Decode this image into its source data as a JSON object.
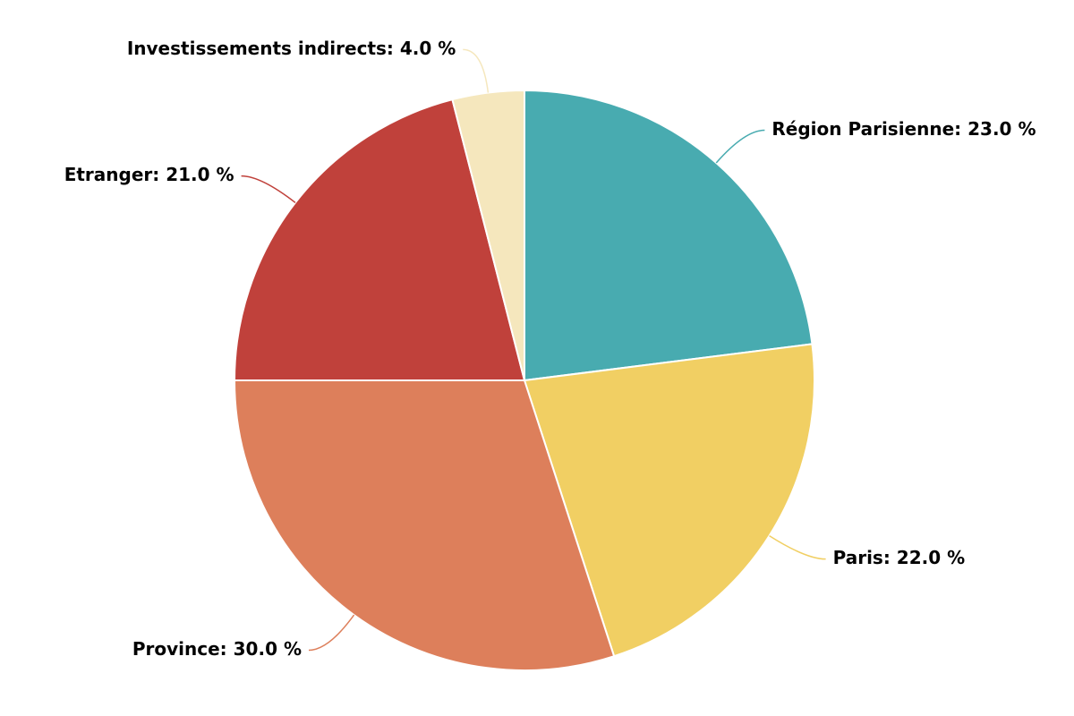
{
  "chart_data": {
    "type": "pie",
    "value_labels": [
      "Région Parisienne: 23.0 %",
      "Paris: 22.0 %",
      "Province: 30.0 %",
      "Etranger: 21.0 %",
      "Investissements indirects: 4.0 %"
    ],
    "values": [
      23,
      22,
      30,
      21,
      4
    ],
    "colors": [
      "#48abb0",
      "#f1cf63",
      "#dd7f5b",
      "#c0413b",
      "#f5e7bd"
    ]
  }
}
